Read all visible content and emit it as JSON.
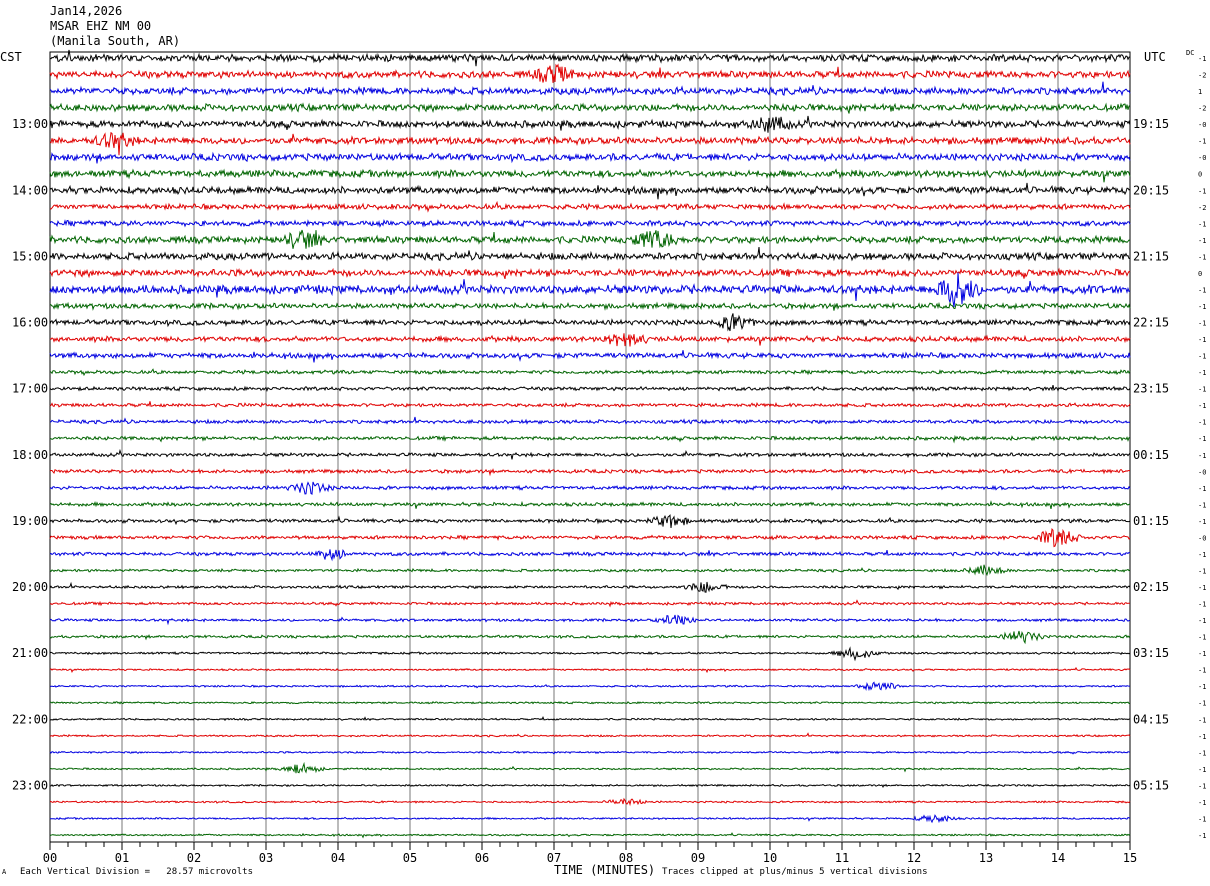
{
  "header": {
    "date": "Jan14,2026",
    "station": "MSAR EHZ NM 00",
    "location": "(Manila South, AR)"
  },
  "left_zone": "CST",
  "right_zone": "UTC",
  "dc_label": "DC",
  "footer": {
    "corner_mark": "A",
    "scale_note": "Each Vertical Division =   28.57 microvolts",
    "clip_note": "Traces clipped at plus/minus 5 vertical divisions"
  },
  "chart_data": {
    "type": "line",
    "xlabel": "TIME (MINUTES)",
    "x_ticks": [
      "00",
      "01",
      "02",
      "03",
      "04",
      "05",
      "06",
      "07",
      "08",
      "09",
      "10",
      "11",
      "12",
      "13",
      "14",
      "15"
    ],
    "xlim": [
      0,
      15
    ],
    "rows_per_hour": 4,
    "trace_colors": [
      "#000000",
      "#e00000",
      "#0000e0",
      "#006400"
    ],
    "grid": true,
    "left_hour_labels": [
      "13:00",
      "14:00",
      "15:00",
      "16:00",
      "17:00",
      "18:00",
      "19:00",
      "20:00",
      "21:00",
      "22:00",
      "23:00"
    ],
    "right_hour_labels": [
      "19:15",
      "20:15",
      "21:15",
      "22:15",
      "23:15",
      "00:15",
      "01:15",
      "02:15",
      "03:15",
      "04:15",
      "05:15"
    ],
    "dc_offsets": [
      "-1",
      "-2",
      "1",
      "-2",
      "-0",
      "-1",
      "-0",
      "0",
      "-1",
      "-2",
      "-1",
      "-1",
      "-1",
      "0",
      "-1",
      "-1",
      "-1",
      "-1",
      "-1",
      "-1",
      "-1",
      "-1",
      "-1",
      "-1",
      "-1",
      "-0",
      "-1",
      "-1",
      "-1",
      "-0",
      "-1",
      "-1",
      "-1",
      "-1",
      "-1",
      "-1",
      "-1",
      "-1",
      "-1",
      "-1",
      "-1",
      "-1",
      "-1",
      "-1",
      "-1",
      "-1",
      "-1",
      "-1"
    ],
    "row_amplitudes": [
      4,
      4,
      4,
      4,
      4,
      4,
      4,
      4,
      4,
      3,
      3,
      4,
      4,
      4,
      5,
      3,
      3,
      3,
      3,
      2,
      2,
      2,
      2,
      2,
      2,
      2,
      2,
      2,
      2,
      2,
      2,
      1.5,
      1.5,
      1.5,
      1.5,
      1.5,
      1.2,
      1,
      1,
      1,
      1,
      1,
      1,
      1,
      1,
      1,
      1,
      1
    ],
    "events": [
      {
        "row": 1,
        "minute": 7.0,
        "amp": 8
      },
      {
        "row": 4,
        "minute": 10.0,
        "amp": 7
      },
      {
        "row": 5,
        "minute": 0.9,
        "amp": 7
      },
      {
        "row": 11,
        "minute": 3.5,
        "amp": 8
      },
      {
        "row": 11,
        "minute": 8.4,
        "amp": 9
      },
      {
        "row": 14,
        "minute": 12.6,
        "amp": 16
      },
      {
        "row": 16,
        "minute": 9.5,
        "amp": 7
      },
      {
        "row": 17,
        "minute": 8.0,
        "amp": 7
      },
      {
        "row": 26,
        "minute": 3.6,
        "amp": 6
      },
      {
        "row": 28,
        "minute": 8.6,
        "amp": 6
      },
      {
        "row": 29,
        "minute": 14.0,
        "amp": 10
      },
      {
        "row": 30,
        "minute": 3.9,
        "amp": 5
      },
      {
        "row": 31,
        "minute": 13.0,
        "amp": 5
      },
      {
        "row": 32,
        "minute": 9.1,
        "amp": 5
      },
      {
        "row": 34,
        "minute": 8.7,
        "amp": 5
      },
      {
        "row": 35,
        "minute": 13.5,
        "amp": 6
      },
      {
        "row": 36,
        "minute": 11.2,
        "amp": 6
      },
      {
        "row": 38,
        "minute": 11.5,
        "amp": 5
      },
      {
        "row": 43,
        "minute": 3.5,
        "amp": 5
      },
      {
        "row": 45,
        "minute": 8.0,
        "amp": 3
      },
      {
        "row": 46,
        "minute": 12.3,
        "amp": 4
      }
    ]
  }
}
